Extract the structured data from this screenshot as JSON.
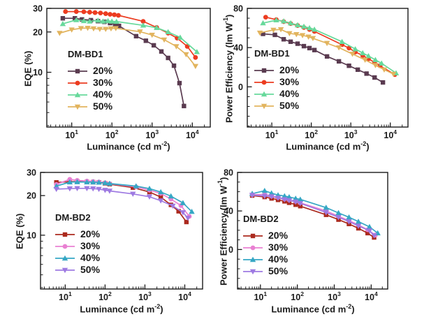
{
  "figure": {
    "background": "#ffffff",
    "text_color": "#1a1a1a",
    "frame_color": "#1a1a1a"
  },
  "chart_data": [
    {
      "id": "eqe-dm-bd1",
      "type": "line",
      "group": "DM-BD1",
      "xlabel": {
        "prefix": "Luminance (cd m",
        "sup": "-2",
        "suffix": ")"
      },
      "ylabel": {
        "prefix": "EQE (%)",
        "sup": "",
        "suffix": ""
      },
      "x_axis": {
        "scale": "log",
        "min": 2.4,
        "max": 28000,
        "major_ticks": [
          10,
          100,
          1000,
          10000
        ]
      },
      "y_axis": {
        "scale": "log",
        "min": 3.9,
        "max": 30,
        "major_ticks": [
          10,
          20,
          30
        ],
        "minor_ticks": [
          4,
          5,
          6,
          7,
          8,
          9
        ]
      },
      "legend_position": "inside-left",
      "grid": false,
      "layout": {
        "plot_left": 67,
        "plot_right": 301,
        "plot_top": 12,
        "plot_bottom": 182
      },
      "series": [
        {
          "name": "20%",
          "color": "#5a3b50",
          "marker": "square",
          "x": [
            6,
            12,
            18,
            30,
            45,
            65,
            90,
            120,
            150,
            400,
            700,
            1100,
            1700,
            2500,
            3500,
            4800,
            6200
          ],
          "y": [
            25.3,
            25.3,
            24.8,
            24.5,
            24.1,
            23.8,
            23.3,
            22.8,
            22.2,
            18.6,
            17.2,
            15.9,
            14.3,
            12.8,
            11.2,
            8.3,
            5.6
          ]
        },
        {
          "name": "30%",
          "color": "#ec3c20",
          "marker": "circle",
          "x": [
            7,
            13,
            20,
            28,
            38,
            52,
            70,
            90,
            115,
            145,
            600,
            1300,
            2500,
            4200,
            7500,
            12000
          ],
          "y": [
            28.4,
            28.4,
            28.3,
            28.1,
            27.9,
            27.7,
            27.4,
            27.1,
            26.9,
            26.6,
            24.0,
            21.6,
            19.6,
            18.0,
            15.6,
            12.9
          ]
        },
        {
          "name": "40%",
          "color": "#67d99b",
          "marker": "triangle-up",
          "x": [
            6,
            13,
            20,
            28,
            45,
            60,
            80,
            100,
            130,
            600,
            1300,
            2500,
            5000,
            13000
          ],
          "y": [
            23.0,
            24.6,
            24.2,
            24.0,
            24.4,
            24.0,
            24.2,
            24.0,
            23.9,
            22.4,
            21.5,
            20.0,
            18.2,
            14.2
          ]
        },
        {
          "name": "50%",
          "color": "#e2b45e",
          "marker": "triangle-down",
          "x": [
            5,
            10,
            17,
            25,
            35,
            50,
            70,
            95,
            125,
            500,
            1000,
            2000,
            4000,
            7000,
            12000
          ],
          "y": [
            19.6,
            20.8,
            21.3,
            21.4,
            21.2,
            21.0,
            21.0,
            21.2,
            21.3,
            20.1,
            19.0,
            17.5,
            15.6,
            13.6,
            11.1
          ]
        }
      ]
    },
    {
      "id": "pe-dm-bd1",
      "type": "line",
      "group": "DM-BD1",
      "xlabel": {
        "prefix": "Luminance (cd m",
        "sup": "-2",
        "suffix": ")"
      },
      "ylabel": {
        "prefix": "Power Efficiency (lm W",
        "sup": "-1",
        "suffix": ")"
      },
      "x_axis": {
        "scale": "log",
        "min": 2.4,
        "max": 28000,
        "major_ticks": [
          10,
          100,
          1000,
          10000
        ]
      },
      "y_axis": {
        "scale": "linear",
        "min": -41,
        "max": 80,
        "major_ticks": [
          0,
          40,
          80
        ],
        "minor_step": 10
      },
      "legend_position": "inside-left",
      "grid": false,
      "layout": {
        "plot_left": 36,
        "plot_right": 266,
        "plot_top": 12,
        "plot_bottom": 182
      },
      "series": [
        {
          "name": "20%",
          "color": "#5a3b50",
          "marker": "square",
          "x": [
            6,
            12,
            20,
            30,
            45,
            65,
            90,
            120,
            250,
            500,
            900,
            1500,
            2500,
            4000,
            6500
          ],
          "y": [
            54,
            53,
            48.5,
            46,
            44,
            41.5,
            39.5,
            37.5,
            31,
            26,
            21.5,
            17.5,
            13.5,
            9.5,
            4.5
          ]
        },
        {
          "name": "30%",
          "color": "#ec3c20",
          "marker": "circle",
          "x": [
            7,
            13,
            20,
            30,
            45,
            65,
            90,
            120,
            600,
            900,
            1300,
            2000,
            2800,
            4000,
            5500,
            13000
          ],
          "y": [
            71,
            68.5,
            66.5,
            64.5,
            62.5,
            60.5,
            58.5,
            56.5,
            43,
            39.5,
            35.5,
            32,
            28.5,
            25,
            21.5,
            12.5
          ]
        },
        {
          "name": "40%",
          "color": "#67d99b",
          "marker": "triangle-up",
          "x": [
            6,
            13,
            20,
            30,
            45,
            65,
            90,
            120,
            600,
            1300,
            2000,
            2800,
            4200,
            6000,
            14000
          ],
          "y": [
            65,
            68,
            67,
            65,
            63,
            61.5,
            60,
            58.5,
            46,
            38.5,
            34.5,
            31.5,
            27.5,
            24,
            14
          ]
        },
        {
          "name": "50%",
          "color": "#e2b45e",
          "marker": "triangle-down",
          "x": [
            5,
            11,
            17,
            28,
            42,
            60,
            85,
            110,
            250,
            500,
            1100,
            2300,
            4200,
            7000,
            12000
          ],
          "y": [
            55,
            58,
            58.5,
            54.5,
            53.5,
            52.5,
            51,
            49.5,
            44.5,
            40,
            33.5,
            27.5,
            22,
            17.5,
            13
          ]
        }
      ]
    },
    {
      "id": "eqe-dm-bd2",
      "type": "line",
      "group": "DM-BD2",
      "xlabel": {
        "prefix": "Luminance (cd m",
        "sup": "-2",
        "suffix": ")"
      },
      "ylabel": {
        "prefix": "EQE (%)",
        "sup": "",
        "suffix": ""
      },
      "x_axis": {
        "scale": "log",
        "min": 2.4,
        "max": 28000,
        "major_ticks": [
          10,
          100,
          1000,
          10000
        ]
      },
      "y_axis": {
        "scale": "log",
        "min": 3.9,
        "max": 30,
        "major_ticks": [
          10,
          20,
          30
        ],
        "minor_ticks": [
          4,
          5,
          6,
          7,
          8,
          9
        ]
      },
      "legend_position": "inside-left",
      "grid": false,
      "layout": {
        "plot_left": 58,
        "plot_right": 290,
        "plot_top": 14,
        "plot_bottom": 181
      },
      "series": [
        {
          "name": "20%",
          "color": "#ab2a1e",
          "marker": "square",
          "x": [
            6,
            13,
            20,
            35,
            50,
            70,
            100,
            130,
            500,
            1300,
            2500,
            4500,
            7000,
            11000
          ],
          "y": [
            25.2,
            25.5,
            25.6,
            25.4,
            25.3,
            25.2,
            24.8,
            24.4,
            23.0,
            21.3,
            19.5,
            17.0,
            15.2,
            12.6
          ]
        },
        {
          "name": "30%",
          "color": "#e980d2",
          "marker": "circle",
          "x": [
            6,
            13,
            20,
            35,
            50,
            70,
            100,
            130,
            600,
            1300,
            2500,
            4500,
            8000,
            13000
          ],
          "y": [
            24.3,
            26.6,
            26.1,
            25.8,
            25.6,
            25.4,
            25.0,
            24.6,
            23.3,
            22.0,
            20.8,
            18.8,
            16.8,
            13.9
          ]
        },
        {
          "name": "40%",
          "color": "#35a7c4",
          "marker": "triangle-up",
          "x": [
            6,
            13,
            20,
            35,
            50,
            70,
            100,
            130,
            600,
            1300,
            2500,
            4500,
            9000,
            15000
          ],
          "y": [
            23.6,
            25.3,
            25.4,
            25.3,
            25.3,
            25.2,
            25.0,
            24.7,
            23.6,
            22.6,
            21.3,
            19.8,
            17.6,
            15.1
          ]
        },
        {
          "name": "50%",
          "color": "#9e7ae2",
          "marker": "triangle-down",
          "x": [
            6,
            13,
            20,
            35,
            50,
            70,
            100,
            130,
            500,
            1300,
            2500,
            5000,
            9000,
            12000
          ],
          "y": [
            22.4,
            22.6,
            22.7,
            22.7,
            22.6,
            22.4,
            22.0,
            21.7,
            20.6,
            19.6,
            18.3,
            16.7,
            14.9,
            13.5
          ]
        }
      ]
    },
    {
      "id": "pe-dm-bd2",
      "type": "line",
      "group": "DM-BD2",
      "xlabel": {
        "prefix": "Luminance (cd m",
        "sup": "-2",
        "suffix": ")"
      },
      "ylabel": {
        "prefix": "Power Efficiency (lm W",
        "sup": "-1",
        "suffix": ")"
      },
      "x_axis": {
        "scale": "log",
        "min": 2.4,
        "max": 28000,
        "major_ticks": [
          10,
          100,
          1000,
          10000
        ]
      },
      "y_axis": {
        "scale": "linear",
        "min": -41,
        "max": 80,
        "major_ticks": [
          0,
          40,
          80
        ],
        "minor_step": 10
      },
      "legend_position": "inside-left",
      "grid": false,
      "layout": {
        "plot_left": 22,
        "plot_right": 237,
        "plot_top": 14,
        "plot_bottom": 181
      },
      "series": [
        {
          "name": "20%",
          "color": "#ab2a1e",
          "marker": "square",
          "x": [
            6,
            13,
            20,
            30,
            45,
            60,
            90,
            120,
            600,
            1300,
            2500,
            4500,
            8000,
            12000
          ],
          "y": [
            56,
            54.5,
            53,
            51.5,
            50,
            48.5,
            46.5,
            45,
            36,
            31,
            26.5,
            22,
            17,
            12.5
          ]
        },
        {
          "name": "30%",
          "color": "#e980d2",
          "marker": "circle",
          "x": [
            6,
            13,
            20,
            30,
            45,
            60,
            90,
            120,
            600,
            1300,
            2500,
            4500,
            8000,
            13000
          ],
          "y": [
            57,
            57,
            55.5,
            54,
            52.5,
            51.5,
            50,
            48.5,
            40,
            34.5,
            30,
            25.5,
            20.5,
            15
          ]
        },
        {
          "name": "40%",
          "color": "#35a7c4",
          "marker": "triangle-up",
          "x": [
            6,
            13,
            20,
            30,
            45,
            60,
            90,
            120,
            600,
            1300,
            2500,
            4500,
            9000,
            15000
          ],
          "y": [
            58,
            61,
            58.5,
            56.5,
            55.5,
            54.5,
            53,
            52,
            43.5,
            38,
            33.5,
            29,
            23.5,
            17
          ]
        },
        {
          "name": "50%",
          "color": "#9e7ae2",
          "marker": "triangle-down",
          "x": [
            6,
            13,
            20,
            30,
            45,
            60,
            90,
            120,
            600,
            1300,
            2500,
            4500,
            9000,
            12000
          ],
          "y": [
            56.5,
            55.5,
            55,
            53.5,
            52,
            51,
            49.5,
            48,
            38.5,
            33.5,
            29,
            24.5,
            19.5,
            14.5
          ]
        }
      ]
    }
  ]
}
